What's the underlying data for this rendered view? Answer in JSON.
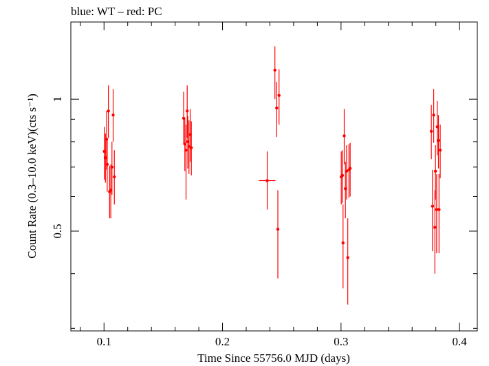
{
  "chart_data": {
    "type": "scatter",
    "title": "blue: WT – red: PC",
    "xlabel": "Time Since 55756.0 MJD (days)",
    "ylabel": "Count Rate (0.3–10.0 keV)(cts s⁻¹)",
    "xlim": [
      0.072,
      0.415
    ],
    "ylim": [
      0.296,
      1.5
    ],
    "y_scale": "log",
    "x_ticks": [
      0.1,
      0.2,
      0.3,
      0.4
    ],
    "x_tick_labels": [
      "0.1",
      "0.2",
      "0.3",
      "0.4"
    ],
    "y_ticks": [
      0.5,
      1.0
    ],
    "y_tick_labels": [
      "0.5",
      "1"
    ],
    "grid": false,
    "series": [
      {
        "name": "PC",
        "color": "#ff0000",
        "points": [
          {
            "x": 0.1002,
            "y": 0.76,
            "ylo": 0.655,
            "yhi": 0.865
          },
          {
            "x": 0.1012,
            "y": 0.735,
            "ylo": 0.645,
            "yhi": 0.835
          },
          {
            "x": 0.1022,
            "y": 0.81,
            "ylo": 0.69,
            "yhi": 0.94
          },
          {
            "x": 0.1027,
            "y": 0.71,
            "ylo": 0.615,
            "yhi": 0.81
          },
          {
            "x": 0.1037,
            "y": 0.94,
            "ylo": 0.815,
            "yhi": 1.075
          },
          {
            "x": 0.1047,
            "y": 0.615,
            "ylo": 0.535,
            "yhi": 0.705
          },
          {
            "x": 0.1057,
            "y": 0.62,
            "ylo": 0.535,
            "yhi": 0.71
          },
          {
            "x": 0.1067,
            "y": 0.7,
            "ylo": 0.605,
            "yhi": 0.8
          },
          {
            "x": 0.1077,
            "y": 0.92,
            "ylo": 0.8,
            "yhi": 1.055
          },
          {
            "x": 0.1087,
            "y": 0.665,
            "ylo": 0.575,
            "yhi": 0.765
          },
          {
            "x": 0.1672,
            "y": 0.905,
            "ylo": 0.79,
            "yhi": 1.04
          },
          {
            "x": 0.1682,
            "y": 0.79,
            "ylo": 0.685,
            "yhi": 0.905
          },
          {
            "x": 0.1692,
            "y": 0.765,
            "ylo": 0.59,
            "yhi": 0.875
          },
          {
            "x": 0.1702,
            "y": 0.94,
            "ylo": 0.815,
            "yhi": 1.075
          },
          {
            "x": 0.1707,
            "y": 0.8,
            "ylo": 0.695,
            "yhi": 0.915
          },
          {
            "x": 0.1717,
            "y": 0.78,
            "ylo": 0.675,
            "yhi": 0.895
          },
          {
            "x": 0.1727,
            "y": 0.83,
            "ylo": 0.72,
            "yhi": 0.95
          },
          {
            "x": 0.1737,
            "y": 0.775,
            "ylo": 0.67,
            "yhi": 0.89
          },
          {
            "x": 0.2377,
            "y": 0.652,
            "ylo": 0.56,
            "yhi": 0.76,
            "xlo": 0.2307,
            "xhi": 0.2447
          },
          {
            "x": 0.2442,
            "y": 1.165,
            "ylo": 1.0,
            "yhi": 1.32
          },
          {
            "x": 0.2457,
            "y": 0.955,
            "ylo": 0.82,
            "yhi": 1.095
          },
          {
            "x": 0.2467,
            "y": 0.505,
            "ylo": 0.39,
            "yhi": 0.62
          },
          {
            "x": 0.2477,
            "y": 1.02,
            "ylo": 0.875,
            "yhi": 1.17
          },
          {
            "x": 0.3002,
            "y": 0.665,
            "ylo": 0.575,
            "yhi": 0.76
          },
          {
            "x": 0.3012,
            "y": 0.67,
            "ylo": 0.58,
            "yhi": 0.765
          },
          {
            "x": 0.3017,
            "y": 0.47,
            "ylo": 0.37,
            "yhi": 0.575
          },
          {
            "x": 0.3027,
            "y": 0.825,
            "ylo": 0.71,
            "yhi": 0.95
          },
          {
            "x": 0.3037,
            "y": 0.625,
            "ylo": 0.535,
            "yhi": 0.72
          },
          {
            "x": 0.3047,
            "y": 0.685,
            "ylo": 0.59,
            "yhi": 0.785
          },
          {
            "x": 0.3057,
            "y": 0.435,
            "ylo": 0.34,
            "yhi": 0.535
          },
          {
            "x": 0.3067,
            "y": 0.69,
            "ylo": 0.595,
            "yhi": 0.79
          },
          {
            "x": 0.3077,
            "y": 0.695,
            "ylo": 0.6,
            "yhi": 0.795
          },
          {
            "x": 0.3762,
            "y": 0.845,
            "ylo": 0.73,
            "yhi": 0.97
          },
          {
            "x": 0.3772,
            "y": 0.57,
            "ylo": 0.45,
            "yhi": 0.69
          },
          {
            "x": 0.3782,
            "y": 0.92,
            "ylo": 0.795,
            "yhi": 1.055
          },
          {
            "x": 0.3792,
            "y": 0.51,
            "ylo": 0.4,
            "yhi": 0.62
          },
          {
            "x": 0.3797,
            "y": 0.685,
            "ylo": 0.59,
            "yhi": 0.785
          },
          {
            "x": 0.3807,
            "y": 0.56,
            "ylo": 0.445,
            "yhi": 0.675
          },
          {
            "x": 0.3812,
            "y": 0.865,
            "ylo": 0.745,
            "yhi": 0.99
          },
          {
            "x": 0.3822,
            "y": 0.805,
            "ylo": 0.695,
            "yhi": 0.92
          },
          {
            "x": 0.3827,
            "y": 0.56,
            "ylo": 0.445,
            "yhi": 0.675
          },
          {
            "x": 0.3837,
            "y": 0.765,
            "ylo": 0.66,
            "yhi": 0.875
          }
        ]
      }
    ]
  }
}
